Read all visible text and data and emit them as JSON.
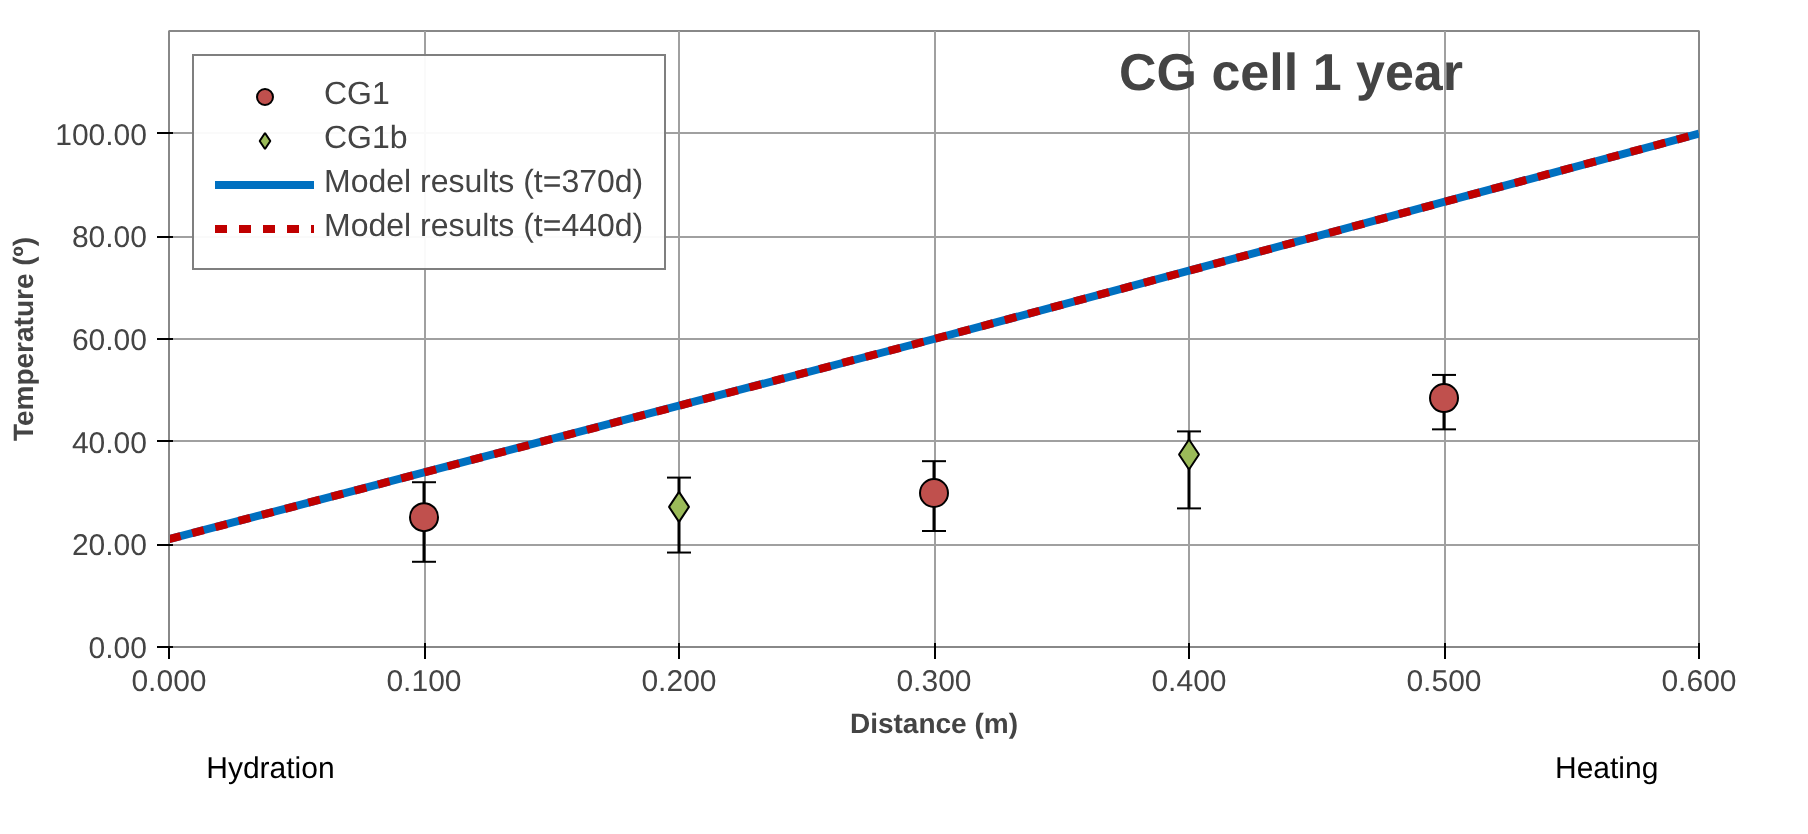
{
  "chart_data": {
    "type": "scatter",
    "title": "CG cell 1 year",
    "xlabel": "Distance (m)",
    "ylabel": "Temperature (º)",
    "xlim": [
      0,
      0.6
    ],
    "xticks": [
      {
        "value": 0,
        "label": "0.000"
      },
      {
        "value": 0.1,
        "label": "0.100"
      },
      {
        "value": 0.2,
        "label": "0.200"
      },
      {
        "value": 0.3,
        "label": "0.300"
      },
      {
        "value": 0.4,
        "label": "0.400"
      },
      {
        "value": 0.5,
        "label": "0.500"
      },
      {
        "value": 0.6,
        "label": "0.600"
      }
    ],
    "ylim": [
      0,
      120
    ],
    "yticks": [
      {
        "value": 0,
        "label": "0.00"
      },
      {
        "value": 20,
        "label": "20.00"
      },
      {
        "value": 40,
        "label": "40.00"
      },
      {
        "value": 60,
        "label": "60.00"
      },
      {
        "value": 80,
        "label": "80.00"
      },
      {
        "value": 100,
        "label": "100.00"
      }
    ],
    "grid": true,
    "legend": "top left",
    "series": [
      {
        "name": "CG1",
        "marker": "circle",
        "color": "#c0504d",
        "x": [
          0.1,
          0.3,
          0.5
        ],
        "values": [
          25.3,
          30.0,
          48.5
        ],
        "errors": [
          [
            16.6,
            32.1
          ],
          [
            22.6,
            36.2
          ],
          [
            42.4,
            53.0
          ]
        ]
      },
      {
        "name": "CG1b",
        "marker": "diamond",
        "color": "#9bbb59",
        "x": [
          0.2,
          0.4
        ],
        "values": [
          27.3,
          37.5
        ],
        "errors": [
          [
            18.4,
            33.0
          ],
          [
            27.0,
            42.0
          ]
        ]
      },
      {
        "name": "Model results (t=370d)",
        "type": "line",
        "line_style": "solid",
        "color": "#0070c0",
        "x": [
          0,
          0.1,
          0.2,
          0.3,
          0.4,
          0.5,
          0.6
        ],
        "values": [
          21,
          34,
          47,
          60,
          73.3,
          86.7,
          100
        ]
      },
      {
        "name": "Model results (t=440d)",
        "type": "line",
        "line_style": "dashed",
        "color": "#c00000",
        "x": [
          0,
          0.1,
          0.2,
          0.3,
          0.4,
          0.5,
          0.6
        ],
        "values": [
          21,
          34,
          47,
          60,
          73.3,
          86.7,
          100
        ]
      }
    ],
    "annotations": [
      "Hydration",
      "Heating"
    ]
  }
}
